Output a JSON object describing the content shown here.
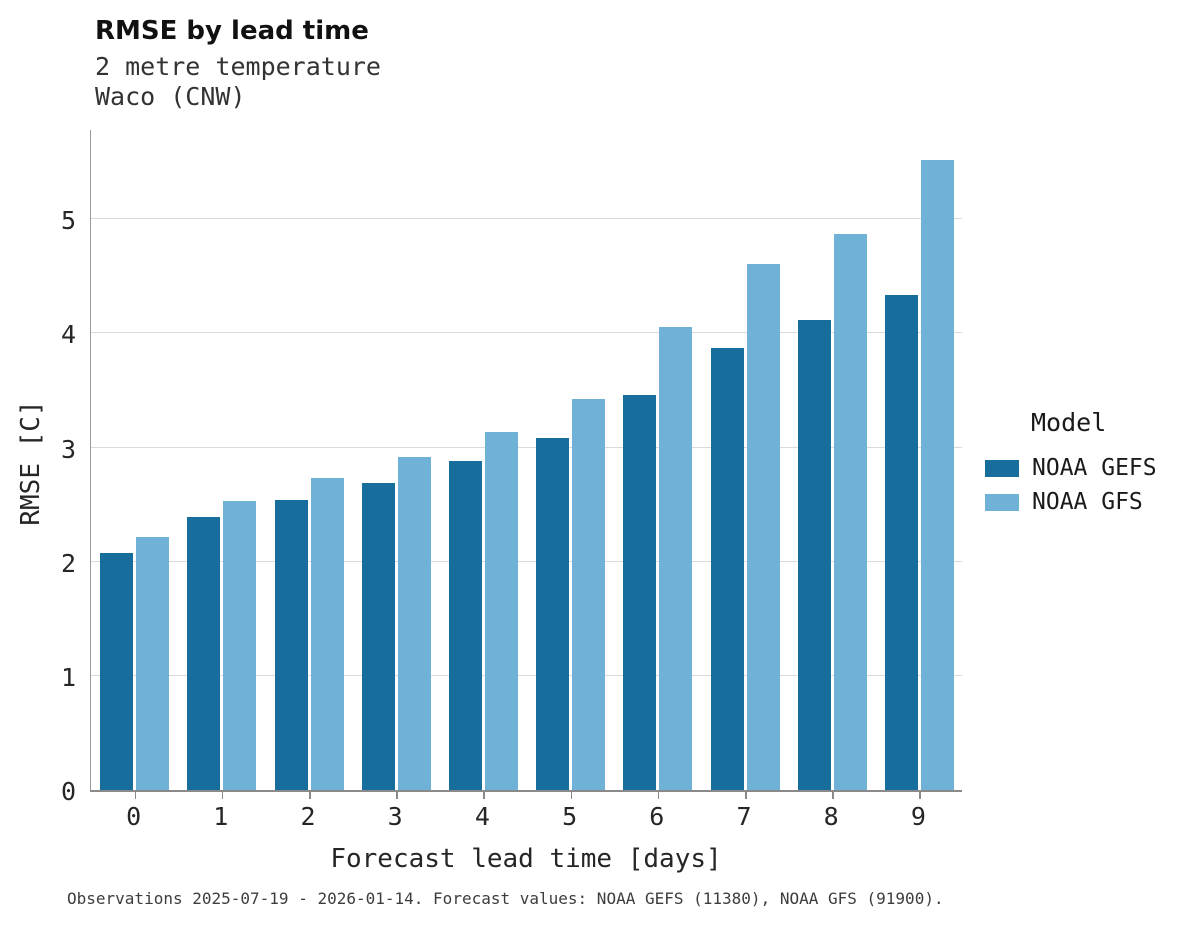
{
  "title": "RMSE by lead time",
  "subtitle_variable": "2 metre temperature",
  "subtitle_location": "Waco (CNW)",
  "ylabel": "RMSE [C]",
  "xlabel": "Forecast lead time [days]",
  "caption": "Observations 2025-07-19 - 2026-01-14. Forecast values: NOAA GEFS (11380), NOAA GFS (91900).",
  "legend": {
    "title": "Model",
    "entries": [
      {
        "label": "NOAA GEFS",
        "color": "#176d9c"
      },
      {
        "label": "NOAA GFS",
        "color": "#70b1d7"
      }
    ]
  },
  "chart_data": {
    "type": "bar",
    "categories": [
      "0",
      "1",
      "2",
      "3",
      "4",
      "5",
      "6",
      "7",
      "8",
      "9"
    ],
    "series": [
      {
        "name": "NOAA GEFS",
        "color": "#176d9c",
        "values": [
          2.08,
          2.39,
          2.54,
          2.69,
          2.88,
          3.08,
          3.46,
          3.87,
          4.12,
          4.34
        ]
      },
      {
        "name": "NOAA GFS",
        "color": "#70b1d7",
        "values": [
          2.22,
          2.53,
          2.73,
          2.92,
          3.14,
          3.43,
          4.06,
          4.61,
          4.87,
          5.52
        ]
      }
    ],
    "title": "RMSE by lead time",
    "subtitle": "2 metre temperature | Waco (CNW)",
    "xlabel": "Forecast lead time [days]",
    "ylabel": "RMSE [C]",
    "ylim": [
      0,
      5.8
    ],
    "yticks": [
      0,
      1,
      2,
      3,
      4,
      5
    ],
    "grid": true,
    "legend_position": "right"
  }
}
